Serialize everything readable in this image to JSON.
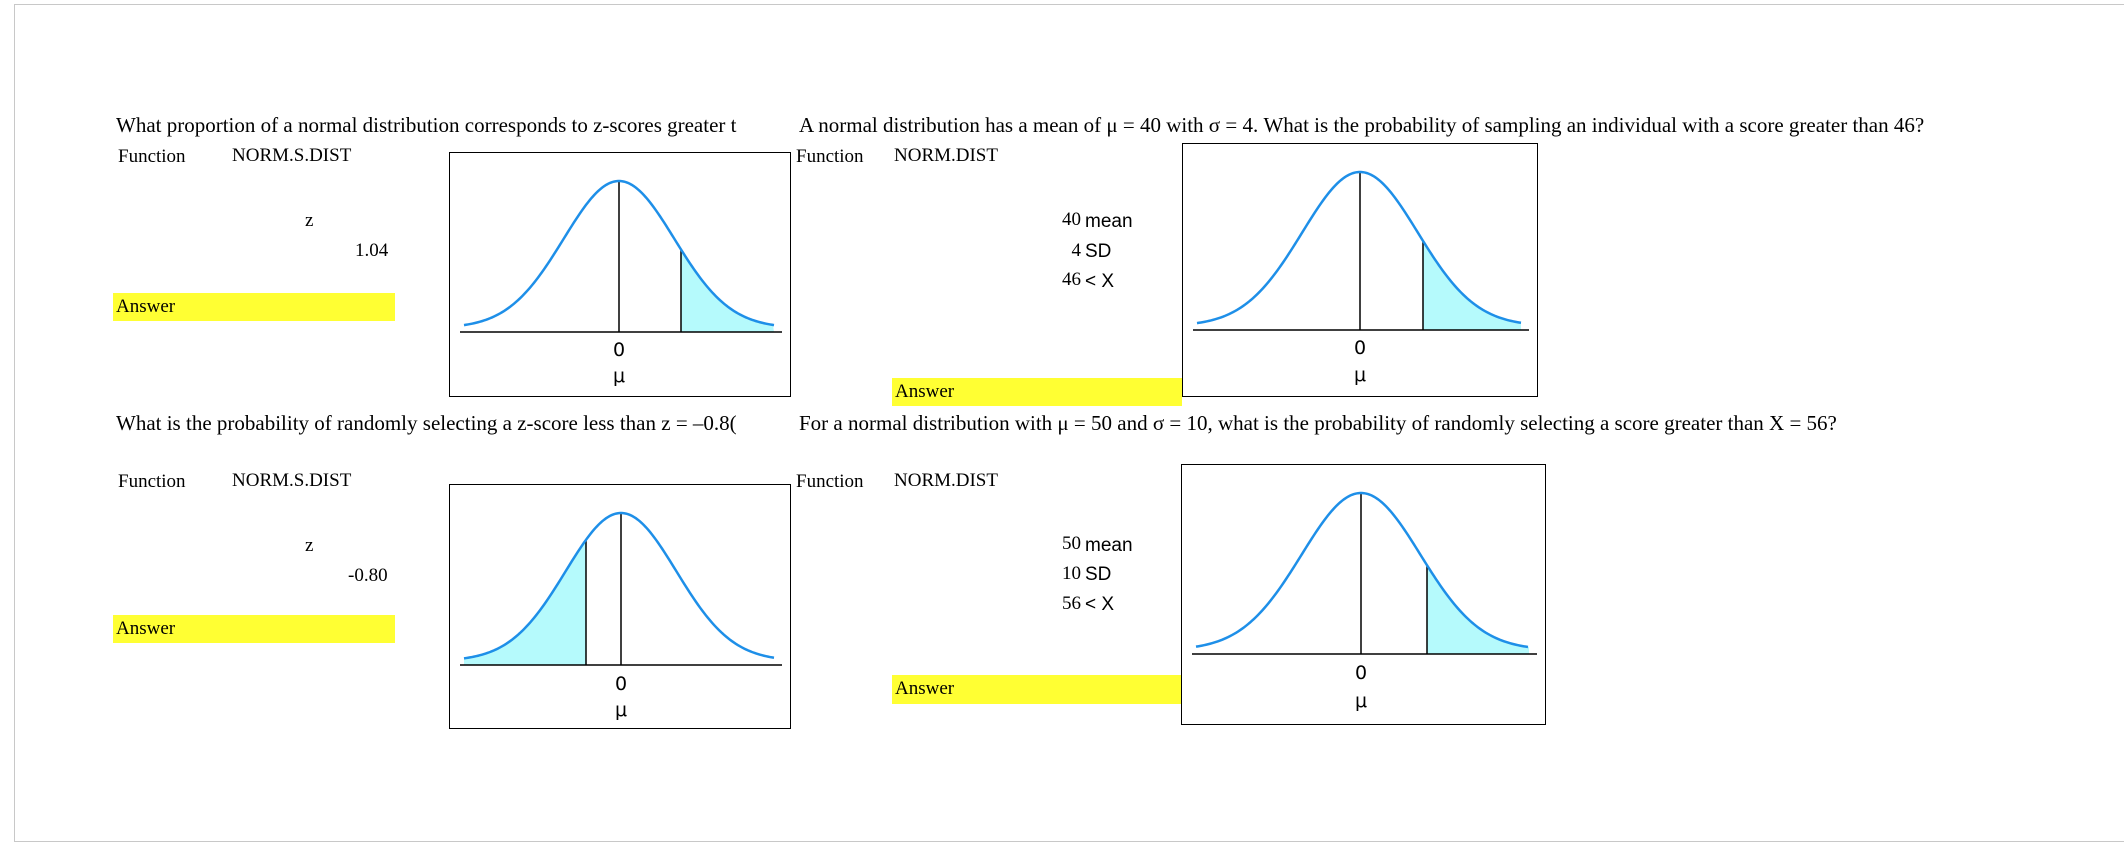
{
  "colors": {
    "curve": "#1e8fe8",
    "shade": "#b5fafc",
    "answer_fill": "#ffff33"
  },
  "problems": [
    {
      "question": "What proportion of a normal distribution corresponds to z-scores greater t",
      "function_label": "Function",
      "function_name": "NORM.S.DIST",
      "var_label": "z",
      "value": "1.04",
      "answer_label": "Answer",
      "graph": {
        "tail": "right",
        "zero_label": "0",
        "mu_label": "μ"
      }
    },
    {
      "question": "A normal distribution has a mean of μ = 40 with σ = 4. What is the probability of sampling an individual with a score greater than 46?",
      "function_label": "Function",
      "function_name": "NORM.DIST",
      "params": [
        {
          "value": "40",
          "label": "mean"
        },
        {
          "value": "4",
          "label": "SD"
        },
        {
          "value": "46",
          "label": "< X"
        }
      ],
      "answer_label": "Answer",
      "graph": {
        "tail": "right",
        "zero_label": "0",
        "mu_label": "μ"
      }
    },
    {
      "question": "What is the probability of randomly selecting a z-score less than z = –0.8(",
      "function_label": "Function",
      "function_name": "NORM.S.DIST",
      "var_label": "z",
      "value": "-0.80",
      "answer_label": "Answer",
      "graph": {
        "tail": "left",
        "zero_label": "0",
        "mu_label": "μ"
      }
    },
    {
      "question": "For a normal distribution with μ = 50 and σ = 10, what is the probability of randomly selecting a score greater than X = 56?",
      "function_label": "Function",
      "function_name": "NORM.DIST",
      "params": [
        {
          "value": "50",
          "label": "mean"
        },
        {
          "value": "10",
          "label": "SD"
        },
        {
          "value": "56",
          "label": "< X"
        }
      ],
      "answer_label": "Answer",
      "graph": {
        "tail": "right",
        "zero_label": "0",
        "mu_label": "μ"
      }
    }
  ]
}
